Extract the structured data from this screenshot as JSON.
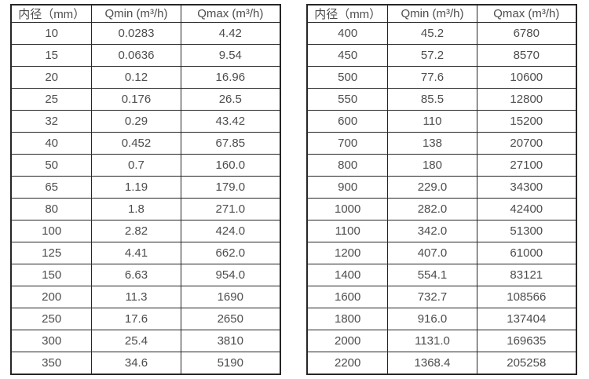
{
  "page": {
    "background_color": "#ffffff",
    "border_color": "#262626",
    "text_color": "#4d4d4d"
  },
  "tables": [
    {
      "title": "flow-table-small-diameters",
      "headers": [
        "内径（mm）",
        "Qmin (m³/h)",
        "Qmax (m³/h)"
      ],
      "rows": [
        [
          "10",
          "0.0283",
          "4.42"
        ],
        [
          "15",
          "0.0636",
          "9.54"
        ],
        [
          "20",
          "0.12",
          "16.96"
        ],
        [
          "25",
          "0.176",
          "26.5"
        ],
        [
          "32",
          "0.29",
          "43.42"
        ],
        [
          "40",
          "0.452",
          "67.85"
        ],
        [
          "50",
          "0.7",
          "160.0"
        ],
        [
          "65",
          "1.19",
          "179.0"
        ],
        [
          "80",
          "1.8",
          "271.0"
        ],
        [
          "100",
          "2.82",
          "424.0"
        ],
        [
          "125",
          "4.41",
          "662.0"
        ],
        [
          "150",
          "6.63",
          "954.0"
        ],
        [
          "200",
          "11.3",
          "1690"
        ],
        [
          "250",
          "17.6",
          "2650"
        ],
        [
          "300",
          "25.4",
          "3810"
        ],
        [
          "350",
          "34.6",
          "5190"
        ]
      ]
    },
    {
      "title": "flow-table-large-diameters",
      "headers": [
        "内径（mm）",
        "Qmin (m³/h)",
        "Qmax (m³/h)"
      ],
      "rows": [
        [
          "400",
          "45.2",
          "6780"
        ],
        [
          "450",
          "57.2",
          "8570"
        ],
        [
          "500",
          "77.6",
          "10600"
        ],
        [
          "550",
          "85.5",
          "12800"
        ],
        [
          "600",
          "110",
          "15200"
        ],
        [
          "700",
          "138",
          "20700"
        ],
        [
          "800",
          "180",
          "27100"
        ],
        [
          "900",
          "229.0",
          "34300"
        ],
        [
          "1000",
          "282.0",
          "42400"
        ],
        [
          "1100",
          "342.0",
          "51300"
        ],
        [
          "1200",
          "407.0",
          "61000"
        ],
        [
          "1400",
          "554.1",
          "83121"
        ],
        [
          "1600",
          "732.7",
          "108566"
        ],
        [
          "1800",
          "916.0",
          "137404"
        ],
        [
          "2000",
          "1131.0",
          "169635"
        ],
        [
          "2200",
          "1368.4",
          "205258"
        ]
      ]
    }
  ]
}
